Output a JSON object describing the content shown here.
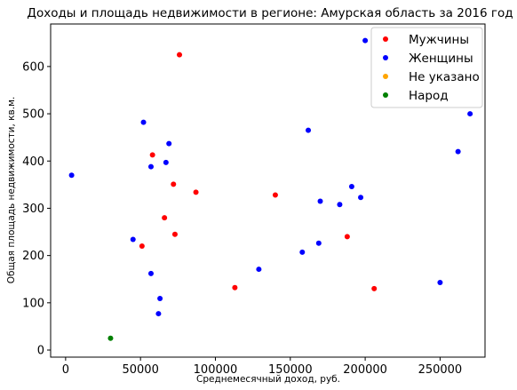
{
  "chart_data": {
    "type": "scatter",
    "title": "Доходы и площадь недвижимости в регионе: Амурская область за 2016 год",
    "xlabel": "Среднемесячный доход, руб.",
    "ylabel": "Общая площадь недвижимости, кв.м.",
    "xlim": [
      -10000,
      280000
    ],
    "ylim": [
      -15,
      690
    ],
    "xticks": [
      0,
      50000,
      100000,
      150000,
      200000,
      250000
    ],
    "yticks": [
      0,
      100,
      200,
      300,
      400,
      500,
      600
    ],
    "legend_position": "top-right",
    "series": [
      {
        "name": "Мужчины",
        "color": "#ff0000",
        "points": [
          [
            76000,
            625
          ],
          [
            58000,
            413
          ],
          [
            72000,
            351
          ],
          [
            87000,
            334
          ],
          [
            140000,
            328
          ],
          [
            66000,
            280
          ],
          [
            73000,
            245
          ],
          [
            51000,
            220
          ],
          [
            188000,
            240
          ],
          [
            113000,
            132
          ],
          [
            206000,
            130
          ]
        ]
      },
      {
        "name": "Женщины",
        "color": "#0000ff",
        "points": [
          [
            200000,
            655
          ],
          [
            52000,
            482
          ],
          [
            270000,
            500
          ],
          [
            162000,
            465
          ],
          [
            69000,
            437
          ],
          [
            262000,
            420
          ],
          [
            67000,
            397
          ],
          [
            57000,
            388
          ],
          [
            4000,
            370
          ],
          [
            191000,
            346
          ],
          [
            197000,
            323
          ],
          [
            170000,
            315
          ],
          [
            183000,
            308
          ],
          [
            45000,
            234
          ],
          [
            169000,
            226
          ],
          [
            158000,
            207
          ],
          [
            129000,
            171
          ],
          [
            57000,
            162
          ],
          [
            250000,
            143
          ],
          [
            63000,
            109
          ],
          [
            62000,
            77
          ]
        ]
      },
      {
        "name": "Не указано",
        "color": "#ffa500",
        "points": []
      },
      {
        "name": "Народ",
        "color": "#008000",
        "points": [
          [
            30000,
            25
          ]
        ]
      }
    ]
  }
}
